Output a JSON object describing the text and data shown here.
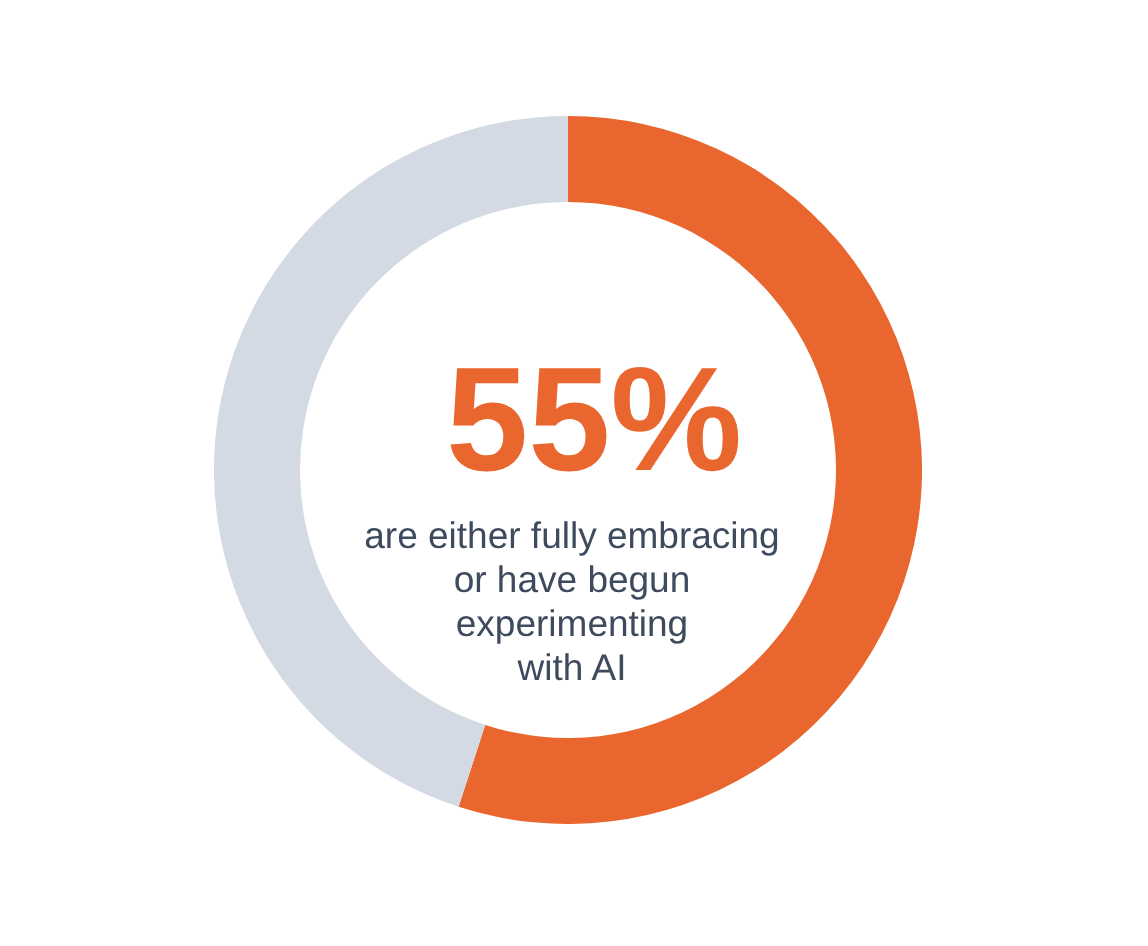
{
  "chart_data": {
    "type": "donut",
    "categories": [
      null,
      null
    ],
    "values": [
      55,
      45
    ],
    "colors": [
      "#e9662e",
      "#d3dae4"
    ],
    "value_labels": [
      "55%",
      null
    ],
    "annotations": [
      "are either fully embracing\nor have begun\nexperimenting\nwith AI"
    ]
  }
}
